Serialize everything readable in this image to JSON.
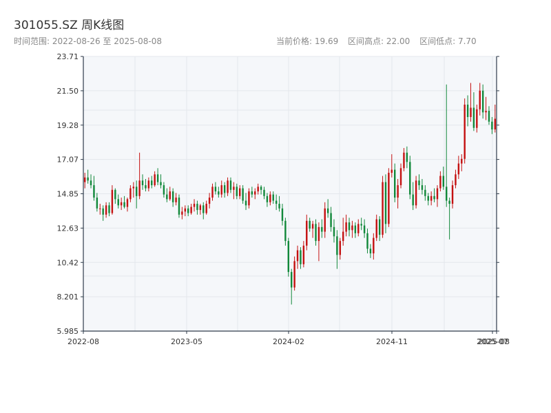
{
  "header": {
    "title": "301055.SZ 周K线图",
    "range_text": "时间范围: 2022-08-26 至 2025-08-08",
    "current_price_text": "当前价格: 19.69",
    "high_text": "区间高点: 22.00",
    "low_text": "区间低点: 7.70"
  },
  "colors": {
    "up": "#c41111",
    "down": "#11883a",
    "plot_bg": "#f5f7fa",
    "grid": "#e4e7ec",
    "axis": "#2d3a4a"
  },
  "chart_data": {
    "type": "candlestick",
    "title": "301055.SZ 周K线图",
    "xlabel": "",
    "ylabel": "",
    "ylim": [
      5.985,
      23.71
    ],
    "y_ticks": [
      "23.71",
      "21.50",
      "19.28",
      "17.07",
      "14.85",
      "12.63",
      "10.42",
      "8.201",
      "5.985"
    ],
    "x_ticks": [
      "2022-08",
      "2023-05",
      "2024-02",
      "2024-11",
      "2025-07",
      "2025-08"
    ],
    "grid": true,
    "series": [
      {
        "name": "",
        "ohlc": [
          [
            15.6,
            16.2,
            15.2,
            15.9
          ],
          [
            15.9,
            16.4,
            15.5,
            15.7
          ],
          [
            15.7,
            16.1,
            15.2,
            15.4
          ],
          [
            15.4,
            16.0,
            14.4,
            14.6
          ],
          [
            14.6,
            14.9,
            13.7,
            13.9
          ],
          [
            13.9,
            14.2,
            13.5,
            13.9
          ],
          [
            13.9,
            14.1,
            13.1,
            13.5
          ],
          [
            13.5,
            14.3,
            13.3,
            14.1
          ],
          [
            14.1,
            14.3,
            13.4,
            13.6
          ],
          [
            13.6,
            15.4,
            13.5,
            15.1
          ],
          [
            15.1,
            15.2,
            14.2,
            14.5
          ],
          [
            14.5,
            14.8,
            13.9,
            14.1
          ],
          [
            14.1,
            14.6,
            13.8,
            14.3
          ],
          [
            14.3,
            14.7,
            13.9,
            14.0
          ],
          [
            14.0,
            14.6,
            13.7,
            14.5
          ],
          [
            14.5,
            15.4,
            14.3,
            15.2
          ],
          [
            15.2,
            15.6,
            14.6,
            15.3
          ],
          [
            15.3,
            15.7,
            13.9,
            14.7
          ],
          [
            14.7,
            17.5,
            14.5,
            15.7
          ],
          [
            15.7,
            16.1,
            15.1,
            15.4
          ],
          [
            15.4,
            15.8,
            15.0,
            15.2
          ],
          [
            15.2,
            15.9,
            15.0,
            15.7
          ],
          [
            15.7,
            16.0,
            15.2,
            15.4
          ],
          [
            15.4,
            16.3,
            15.3,
            16.1
          ],
          [
            16.1,
            16.5,
            15.4,
            15.6
          ],
          [
            15.6,
            16.1,
            15.2,
            15.4
          ],
          [
            15.4,
            15.6,
            14.6,
            14.8
          ],
          [
            14.8,
            15.2,
            14.3,
            14.5
          ],
          [
            14.5,
            15.3,
            14.4,
            15.0
          ],
          [
            15.0,
            15.2,
            14.0,
            14.3
          ],
          [
            14.3,
            14.9,
            14.1,
            14.6
          ],
          [
            14.6,
            14.8,
            13.3,
            13.5
          ],
          [
            13.5,
            14.0,
            13.2,
            13.7
          ],
          [
            13.7,
            14.1,
            13.4,
            13.9
          ],
          [
            13.9,
            14.1,
            13.4,
            13.6
          ],
          [
            13.6,
            14.2,
            13.5,
            14.0
          ],
          [
            14.0,
            14.5,
            13.7,
            14.2
          ],
          [
            14.2,
            14.4,
            13.5,
            13.8
          ],
          [
            13.8,
            14.2,
            13.5,
            14.1
          ],
          [
            14.1,
            14.3,
            13.2,
            13.6
          ],
          [
            13.6,
            14.4,
            13.5,
            14.2
          ],
          [
            14.2,
            14.9,
            13.9,
            14.6
          ],
          [
            14.6,
            15.5,
            14.4,
            15.3
          ],
          [
            15.3,
            15.6,
            14.8,
            15.0
          ],
          [
            15.0,
            15.3,
            14.6,
            14.8
          ],
          [
            14.8,
            15.7,
            14.6,
            15.4
          ],
          [
            15.4,
            15.6,
            14.6,
            14.9
          ],
          [
            14.9,
            15.9,
            14.7,
            15.7
          ],
          [
            15.7,
            15.9,
            14.9,
            15.1
          ],
          [
            15.1,
            15.6,
            14.5,
            15.3
          ],
          [
            15.3,
            15.5,
            14.5,
            14.7
          ],
          [
            14.7,
            15.4,
            14.5,
            15.2
          ],
          [
            15.2,
            15.4,
            14.2,
            14.4
          ],
          [
            14.4,
            14.9,
            13.8,
            14.1
          ],
          [
            14.1,
            15.2,
            13.9,
            15.0
          ],
          [
            15.0,
            15.3,
            14.6,
            14.8
          ],
          [
            14.8,
            15.2,
            14.5,
            15.0
          ],
          [
            15.0,
            15.5,
            14.8,
            15.3
          ],
          [
            15.3,
            15.4,
            14.8,
            15.1
          ],
          [
            15.1,
            15.3,
            14.5,
            14.7
          ],
          [
            14.7,
            14.9,
            14.0,
            14.3
          ],
          [
            14.3,
            15.0,
            14.1,
            14.8
          ],
          [
            14.8,
            15.0,
            14.2,
            14.4
          ],
          [
            14.4,
            14.8,
            13.8,
            14.2
          ],
          [
            14.2,
            14.7,
            13.7,
            13.9
          ],
          [
            13.9,
            14.2,
            12.8,
            13.1
          ],
          [
            13.1,
            13.3,
            11.5,
            11.8
          ],
          [
            11.8,
            12.0,
            9.5,
            9.8
          ],
          [
            9.8,
            10.0,
            7.7,
            8.8
          ],
          [
            8.8,
            10.8,
            8.6,
            10.5
          ],
          [
            10.5,
            11.5,
            10.0,
            11.2
          ],
          [
            11.2,
            11.4,
            10.0,
            10.3
          ],
          [
            10.3,
            11.8,
            10.1,
            11.5
          ],
          [
            11.5,
            13.5,
            11.2,
            13.1
          ],
          [
            13.1,
            13.3,
            12.4,
            12.6
          ],
          [
            12.6,
            13.1,
            12.0,
            12.9
          ],
          [
            12.9,
            13.2,
            11.5,
            11.8
          ],
          [
            11.8,
            13.0,
            10.5,
            12.7
          ],
          [
            12.7,
            13.2,
            12.0,
            12.4
          ],
          [
            12.4,
            14.3,
            12.0,
            13.9
          ],
          [
            13.9,
            14.5,
            13.3,
            13.6
          ],
          [
            13.6,
            14.0,
            12.4,
            12.7
          ],
          [
            12.7,
            13.2,
            11.7,
            12.1
          ],
          [
            12.1,
            12.5,
            10.0,
            10.9
          ],
          [
            10.9,
            12.0,
            10.6,
            11.8
          ],
          [
            11.8,
            13.3,
            11.5,
            12.4
          ],
          [
            12.4,
            13.5,
            12.1,
            13.0
          ],
          [
            13.0,
            13.3,
            12.1,
            12.5
          ],
          [
            12.5,
            13.1,
            12.0,
            12.8
          ],
          [
            12.8,
            13.0,
            12.0,
            12.3
          ],
          [
            12.3,
            13.2,
            12.1,
            12.9
          ],
          [
            12.9,
            13.3,
            12.5,
            12.8
          ],
          [
            12.8,
            13.2,
            12.0,
            12.3
          ],
          [
            12.3,
            12.6,
            11.0,
            11.3
          ],
          [
            11.3,
            11.6,
            10.7,
            11.0
          ],
          [
            11.0,
            12.3,
            10.6,
            12.0
          ],
          [
            12.0,
            13.5,
            11.8,
            13.2
          ],
          [
            13.2,
            13.4,
            11.8,
            12.2
          ],
          [
            12.2,
            16.0,
            12.0,
            15.6
          ],
          [
            15.6,
            16.1,
            12.3,
            12.9
          ],
          [
            12.9,
            16.5,
            12.7,
            16.2
          ],
          [
            16.2,
            17.4,
            15.9,
            16.4
          ],
          [
            16.4,
            16.8,
            14.3,
            14.6
          ],
          [
            14.6,
            15.8,
            13.9,
            15.4
          ],
          [
            15.4,
            16.8,
            15.2,
            16.5
          ],
          [
            16.5,
            17.8,
            16.3,
            17.5
          ],
          [
            17.5,
            17.9,
            16.5,
            16.9
          ],
          [
            16.9,
            17.3,
            14.5,
            14.8
          ],
          [
            14.8,
            15.6,
            13.8,
            14.1
          ],
          [
            14.1,
            16.0,
            13.9,
            15.7
          ],
          [
            15.7,
            16.1,
            15.1,
            15.4
          ],
          [
            15.4,
            15.8,
            14.8,
            15.1
          ],
          [
            15.1,
            15.4,
            14.4,
            14.7
          ],
          [
            14.7,
            14.9,
            14.1,
            14.4
          ],
          [
            14.4,
            15.0,
            14.1,
            14.7
          ],
          [
            14.7,
            15.2,
            14.3,
            14.5
          ],
          [
            14.5,
            15.4,
            14.0,
            15.2
          ],
          [
            15.2,
            16.3,
            15.0,
            16.0
          ],
          [
            16.0,
            16.6,
            15.1,
            15.3
          ],
          [
            15.3,
            21.9,
            14.0,
            14.4
          ],
          [
            14.4,
            14.6,
            11.9,
            14.2
          ],
          [
            14.2,
            15.7,
            13.9,
            15.4
          ],
          [
            15.4,
            16.4,
            15.2,
            16.1
          ],
          [
            16.1,
            17.3,
            15.8,
            16.8
          ],
          [
            16.8,
            17.4,
            16.3,
            17.1
          ],
          [
            17.1,
            21.0,
            16.8,
            20.6
          ],
          [
            20.6,
            21.2,
            19.2,
            19.8
          ],
          [
            19.8,
            22.0,
            19.5,
            20.4
          ],
          [
            20.4,
            21.4,
            18.9,
            19.1
          ],
          [
            19.1,
            20.6,
            18.8,
            20.3
          ],
          [
            20.3,
            22.0,
            19.9,
            21.5
          ],
          [
            21.5,
            21.9,
            19.7,
            20.1
          ],
          [
            20.1,
            21.1,
            19.6,
            20.2
          ],
          [
            20.2,
            20.5,
            19.3,
            19.5
          ],
          [
            19.5,
            19.8,
            18.7,
            19.0
          ],
          [
            19.0,
            20.6,
            18.8,
            19.69
          ]
        ]
      }
    ]
  }
}
